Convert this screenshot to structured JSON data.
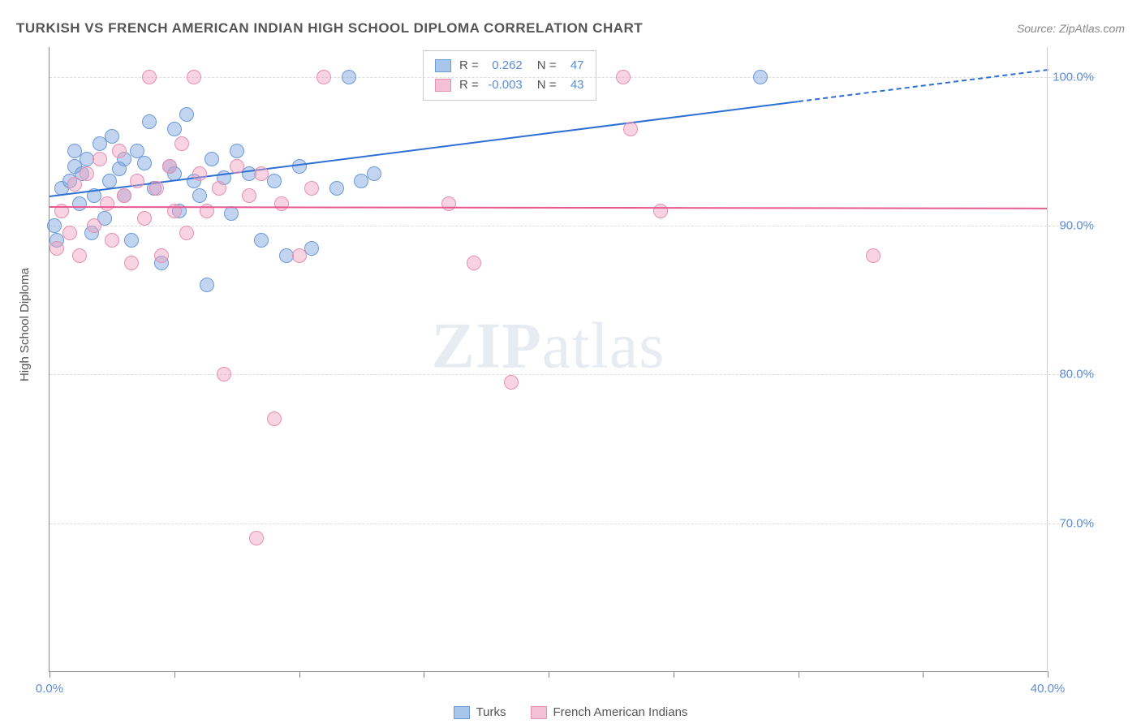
{
  "title": "TURKISH VS FRENCH AMERICAN INDIAN HIGH SCHOOL DIPLOMA CORRELATION CHART",
  "source": "Source: ZipAtlas.com",
  "watermark_zip": "ZIP",
  "watermark_atlas": "atlas",
  "y_axis_label": "High School Diploma",
  "chart": {
    "type": "scatter",
    "background_color": "#ffffff",
    "grid_color": "#dddddd",
    "axis_color": "#888888",
    "xlim": [
      0,
      40
    ],
    "ylim": [
      60,
      102
    ],
    "x_ticks": [
      0,
      5,
      10,
      15,
      20,
      25,
      30,
      35,
      40
    ],
    "x_tick_labels": {
      "0": "0.0%",
      "40": "40.0%"
    },
    "y_ticks": [
      70,
      80,
      90,
      100
    ],
    "y_tick_labels": {
      "70": "70.0%",
      "80": "80.0%",
      "90": "90.0%",
      "100": "100.0%"
    },
    "label_fontsize": 15,
    "label_color": "#5b8dd6",
    "series": [
      {
        "name": "Turks",
        "color_fill": "rgba(120,160,220,0.45)",
        "color_stroke": "#6b9bd8",
        "color_hex": "#a8c5ea",
        "marker_radius": 9,
        "R": "0.262",
        "N": "47",
        "trend": {
          "y_at_x0": 92.0,
          "y_at_x40": 100.5,
          "color": "#2d6fd4",
          "width": 2,
          "dash_after_x": 30
        },
        "points": [
          [
            0.2,
            90.0
          ],
          [
            0.3,
            89.0
          ],
          [
            0.5,
            92.5
          ],
          [
            0.8,
            93.0
          ],
          [
            1.0,
            95.0
          ],
          [
            1.0,
            94.0
          ],
          [
            1.2,
            91.5
          ],
          [
            1.3,
            93.5
          ],
          [
            1.5,
            94.5
          ],
          [
            1.7,
            89.5
          ],
          [
            1.8,
            92.0
          ],
          [
            2.0,
            95.5
          ],
          [
            2.2,
            90.5
          ],
          [
            2.4,
            93.0
          ],
          [
            2.5,
            96.0
          ],
          [
            2.8,
            93.8
          ],
          [
            3.0,
            92.0
          ],
          [
            3.0,
            94.5
          ],
          [
            3.3,
            89.0
          ],
          [
            3.5,
            95.0
          ],
          [
            3.8,
            94.2
          ],
          [
            4.0,
            97.0
          ],
          [
            4.2,
            92.5
          ],
          [
            4.5,
            87.5
          ],
          [
            4.8,
            94.0
          ],
          [
            5.0,
            96.5
          ],
          [
            5.2,
            91.0
          ],
          [
            5.0,
            93.5
          ],
          [
            5.5,
            97.5
          ],
          [
            5.8,
            93.0
          ],
          [
            6.0,
            92.0
          ],
          [
            6.3,
            86.0
          ],
          [
            6.5,
            94.5
          ],
          [
            7.0,
            93.2
          ],
          [
            7.3,
            90.8
          ],
          [
            7.5,
            95.0
          ],
          [
            8.0,
            93.5
          ],
          [
            8.5,
            89.0
          ],
          [
            9.0,
            93.0
          ],
          [
            9.5,
            88.0
          ],
          [
            10.0,
            94.0
          ],
          [
            10.5,
            88.5
          ],
          [
            11.5,
            92.5
          ],
          [
            12.0,
            100.0
          ],
          [
            12.5,
            93.0
          ],
          [
            13.0,
            93.5
          ],
          [
            28.5,
            100.0
          ]
        ]
      },
      {
        "name": "French American Indians",
        "color_fill": "rgba(240,160,190,0.45)",
        "color_stroke": "#e68fb0",
        "color_hex": "#f4c0d4",
        "marker_radius": 9,
        "R": "-0.003",
        "N": "43",
        "trend": {
          "y_at_x0": 91.3,
          "y_at_x40": 91.2,
          "color": "#e85a8f",
          "width": 2
        },
        "points": [
          [
            0.3,
            88.5
          ],
          [
            0.5,
            91.0
          ],
          [
            0.8,
            89.5
          ],
          [
            1.0,
            92.8
          ],
          [
            1.2,
            88.0
          ],
          [
            1.5,
            93.5
          ],
          [
            1.8,
            90.0
          ],
          [
            2.0,
            94.5
          ],
          [
            2.3,
            91.5
          ],
          [
            2.5,
            89.0
          ],
          [
            2.8,
            95.0
          ],
          [
            3.0,
            92.0
          ],
          [
            3.3,
            87.5
          ],
          [
            3.5,
            93.0
          ],
          [
            3.8,
            90.5
          ],
          [
            4.0,
            100.0
          ],
          [
            4.3,
            92.5
          ],
          [
            4.5,
            88.0
          ],
          [
            4.8,
            94.0
          ],
          [
            5.0,
            91.0
          ],
          [
            5.3,
            95.5
          ],
          [
            5.5,
            89.5
          ],
          [
            5.8,
            100.0
          ],
          [
            6.0,
            93.5
          ],
          [
            6.3,
            91.0
          ],
          [
            6.8,
            92.5
          ],
          [
            7.0,
            80.0
          ],
          [
            7.5,
            94.0
          ],
          [
            8.0,
            92.0
          ],
          [
            8.3,
            69.0
          ],
          [
            8.5,
            93.5
          ],
          [
            9.0,
            77.0
          ],
          [
            9.3,
            91.5
          ],
          [
            10.0,
            88.0
          ],
          [
            10.5,
            92.5
          ],
          [
            11.0,
            100.0
          ],
          [
            16.0,
            91.5
          ],
          [
            17.0,
            87.5
          ],
          [
            18.5,
            79.5
          ],
          [
            23.0,
            100.0
          ],
          [
            23.3,
            96.5
          ],
          [
            24.5,
            91.0
          ],
          [
            33.0,
            88.0
          ]
        ]
      }
    ]
  },
  "stats_legend": {
    "r_label": "R =",
    "n_label": "N ="
  }
}
